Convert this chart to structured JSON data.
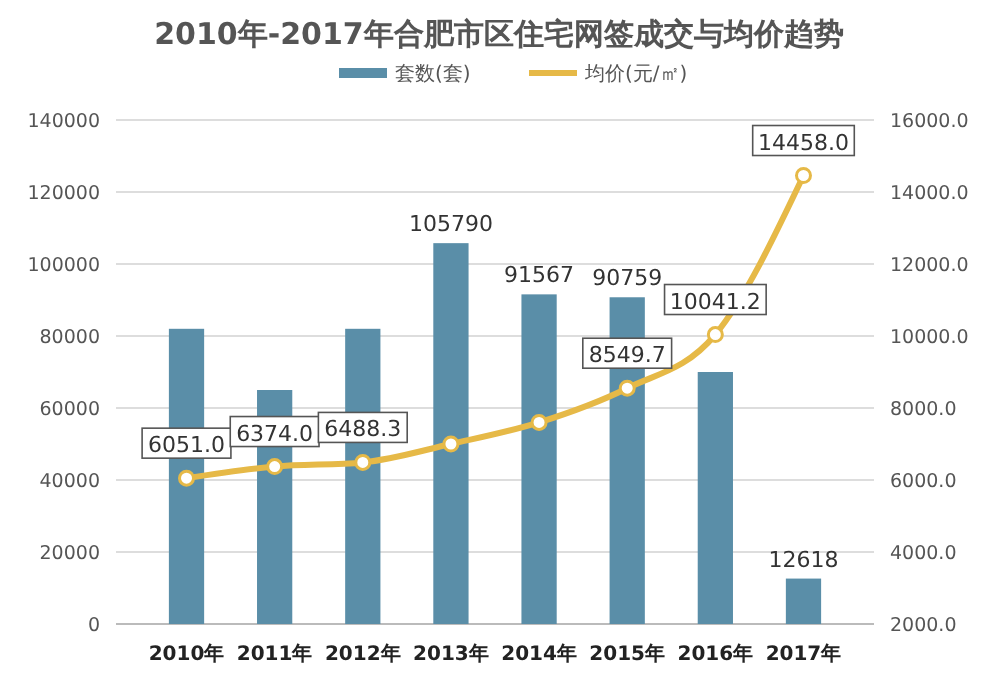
{
  "chart_data": {
    "type": "bar",
    "title": "2010年-2017年合肥市区住宅网签成交与均价趋势",
    "categories": [
      "2010年",
      "2011年",
      "2012年",
      "2013年",
      "2014年",
      "2015年",
      "2016年",
      "2017年"
    ],
    "series": [
      {
        "name": "套数(套)",
        "color": "#5a8ea8",
        "values": [
          82000,
          65000,
          82000,
          105790,
          91567,
          90759,
          70000,
          12618
        ],
        "value_labels": [
          null,
          null,
          null,
          "105790",
          "91567",
          "90759",
          null,
          "12618"
        ]
      },
      {
        "name": "均价(元/㎡)",
        "type": "line",
        "axis": "y2",
        "color": "#e6b947",
        "marker": "circle",
        "values": [
          6051.0,
          6374.0,
          6488.3,
          7000,
          7600,
          8549.7,
          10041.2,
          14458.0
        ],
        "value_labels": [
          "6051.0",
          "6374.0",
          "6488.3",
          null,
          null,
          "8549.7",
          "10041.2",
          "14458.0"
        ]
      }
    ],
    "ylim": [
      0,
      140000
    ],
    "yticks": [
      0,
      20000,
      40000,
      60000,
      80000,
      100000,
      120000,
      140000
    ],
    "y2lim": [
      2000,
      16000
    ],
    "y2ticks": [
      {
        "value": 2000,
        "label": "2000.0"
      },
      {
        "value": 4000,
        "label": "4000.0"
      },
      {
        "value": 6000,
        "label": "6000.0"
      },
      {
        "value": 8000,
        "label": "8000.0"
      },
      {
        "value": 10000,
        "label": "10000.0"
      },
      {
        "value": 12000,
        "label": "12000.0"
      },
      {
        "value": 14000,
        "label": "14000.0"
      },
      {
        "value": 16000,
        "label": "16000.0"
      }
    ],
    "grid": "y",
    "legend": "top"
  }
}
